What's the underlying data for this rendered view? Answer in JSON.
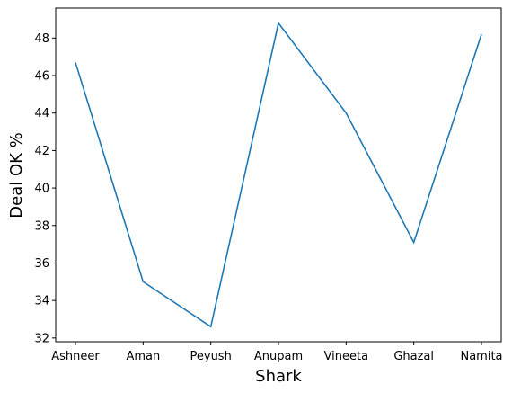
{
  "chart_data": {
    "type": "line",
    "title": "",
    "xlabel": "Shark",
    "ylabel": "Deal OK %",
    "categories": [
      "Ashneer",
      "Aman",
      "Peyush",
      "Anupam",
      "Vineeta",
      "Ghazal",
      "Namita"
    ],
    "series": [
      {
        "values": [
          46.7,
          35.0,
          32.6,
          48.8,
          44.0,
          37.1,
          48.2
        ],
        "color": "#1f77b4"
      }
    ],
    "ylim": [
      31.8,
      49.6
    ],
    "yticks": [
      32,
      34,
      36,
      38,
      40,
      42,
      44,
      46,
      48
    ],
    "grid": false,
    "legend": "none"
  }
}
